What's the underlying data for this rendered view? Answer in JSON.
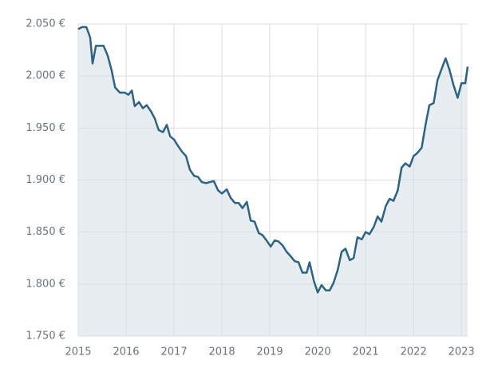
{
  "chart_data": {
    "type": "area",
    "x": [
      2015.0,
      2015.08,
      2015.17,
      2015.25,
      2015.3,
      2015.37,
      2015.45,
      2015.53,
      2015.62,
      2015.7,
      2015.77,
      2015.87,
      2015.97,
      2016.05,
      2016.12,
      2016.18,
      2016.27,
      2016.35,
      2016.43,
      2016.52,
      2016.6,
      2016.68,
      2016.77,
      2016.85,
      2016.92,
      2017.0,
      2017.08,
      2017.17,
      2017.25,
      2017.33,
      2017.42,
      2017.5,
      2017.58,
      2017.67,
      2017.75,
      2017.83,
      2017.92,
      2018.0,
      2018.1,
      2018.18,
      2018.27,
      2018.35,
      2018.43,
      2018.52,
      2018.6,
      2018.68,
      2018.77,
      2018.85,
      2018.93,
      2019.02,
      2019.1,
      2019.18,
      2019.27,
      2019.35,
      2019.43,
      2019.52,
      2019.6,
      2019.68,
      2019.77,
      2019.83,
      2019.92,
      2020.0,
      2020.08,
      2020.17,
      2020.25,
      2020.33,
      2020.42,
      2020.5,
      2020.58,
      2020.67,
      2020.75,
      2020.83,
      2020.92,
      2021.0,
      2021.08,
      2021.17,
      2021.25,
      2021.33,
      2021.42,
      2021.5,
      2021.58,
      2021.67,
      2021.75,
      2021.83,
      2021.92,
      2022.0,
      2022.08,
      2022.17,
      2022.25,
      2022.33,
      2022.42,
      2022.5,
      2022.58,
      2022.67,
      2022.75,
      2022.83,
      2022.92,
      2023.0,
      2023.08,
      2023.13
    ],
    "values": [
      2045,
      2047,
      2047,
      2037,
      2012,
      2029,
      2029,
      2029,
      2019,
      2005,
      1989,
      1984,
      1984,
      1982,
      1986,
      1971,
      1975,
      1969,
      1972,
      1966,
      1959,
      1948,
      1946,
      1953,
      1942,
      1939,
      1933,
      1927,
      1923,
      1910,
      1904,
      1903,
      1898,
      1897,
      1898,
      1899,
      1890,
      1887,
      1891,
      1883,
      1878,
      1878,
      1873,
      1879,
      1861,
      1860,
      1849,
      1847,
      1842,
      1836,
      1842,
      1841,
      1837,
      1831,
      1827,
      1822,
      1821,
      1811,
      1811,
      1821,
      1803,
      1792,
      1799,
      1794,
      1794,
      1801,
      1814,
      1831,
      1834,
      1823,
      1825,
      1845,
      1843,
      1850,
      1848,
      1855,
      1865,
      1860,
      1875,
      1882,
      1880,
      1890,
      1912,
      1916,
      1913,
      1923,
      1926,
      1931,
      1953,
      1972,
      1974,
      1996,
      2006,
      2017,
      2006,
      1992,
      1979,
      1993,
      1993,
      2009
    ],
    "color": "#2d6383",
    "fill": "#e8edf2",
    "xlim": [
      2015,
      2023.13
    ],
    "xticks": [
      2015,
      2016,
      2017,
      2018,
      2019,
      2020,
      2021,
      2022,
      2023
    ],
    "ylim": [
      1750,
      2050
    ],
    "yticks": [
      {
        "value": 1750,
        "label": "1.750 €"
      },
      {
        "value": 1800,
        "label": "1.800 €"
      },
      {
        "value": 1850,
        "label": "1.850 €"
      },
      {
        "value": 1900,
        "label": "1.900 €"
      },
      {
        "value": 1950,
        "label": "1.950 €"
      },
      {
        "value": 2000,
        "label": "2.000 €"
      },
      {
        "value": 2050,
        "label": "2.050 €"
      }
    ],
    "grid": true
  }
}
